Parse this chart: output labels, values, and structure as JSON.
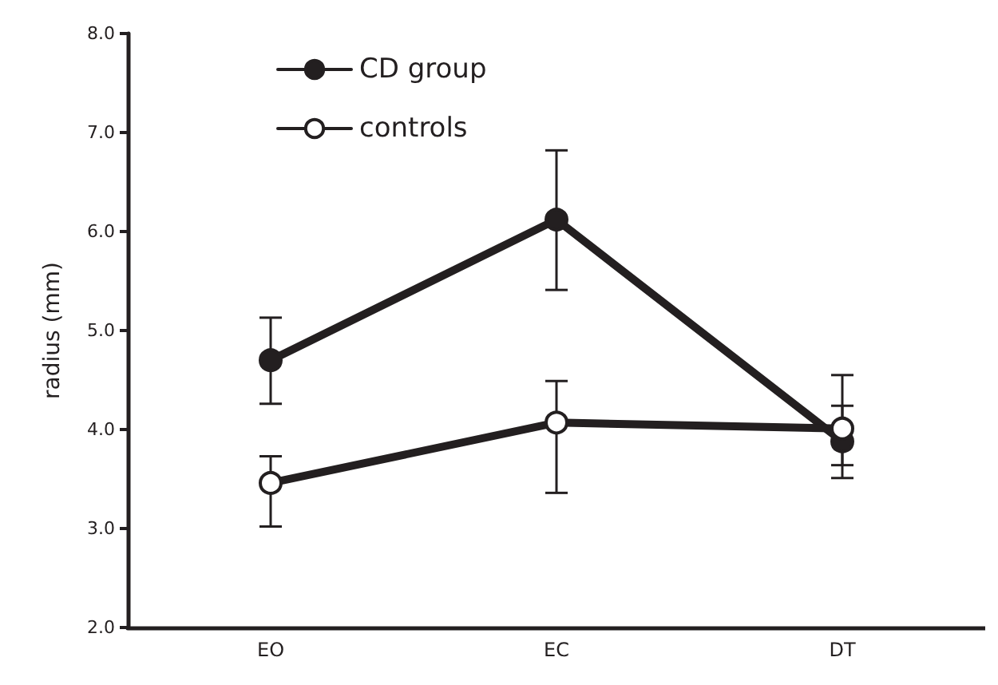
{
  "chart_data": {
    "type": "line",
    "ylabel": "radius (mm)",
    "categories": [
      "EO",
      "EC",
      "DT"
    ],
    "series": [
      {
        "name": "CD group",
        "color": "#231f20",
        "marker": "circle",
        "values": [
          4.7,
          6.12,
          3.88
        ],
        "errors": [
          [
            4.26,
            5.13
          ],
          [
            5.41,
            6.82
          ],
          [
            3.51,
            4.24
          ]
        ]
      },
      {
        "name": "controls",
        "color": "#231f20",
        "marker": "open_circle",
        "values": [
          3.46,
          4.07,
          4.01
        ],
        "errors": [
          [
            3.02,
            3.73
          ],
          [
            3.36,
            4.49
          ],
          [
            3.64,
            4.55
          ]
        ]
      }
    ],
    "ylim": [
      2.0,
      8.0
    ],
    "yticks": [
      {
        "value": 2,
        "label": "2.0"
      },
      {
        "value": 3,
        "label": "3.0"
      },
      {
        "value": 4,
        "label": "4.0"
      },
      {
        "value": 5,
        "label": "5.0"
      },
      {
        "value": 6,
        "label": "6.0"
      },
      {
        "value": 7,
        "label": "7.0"
      },
      {
        "value": 8,
        "label": "8.0"
      }
    ],
    "grid": false,
    "legend": "top left",
    "line_style": "solid"
  }
}
